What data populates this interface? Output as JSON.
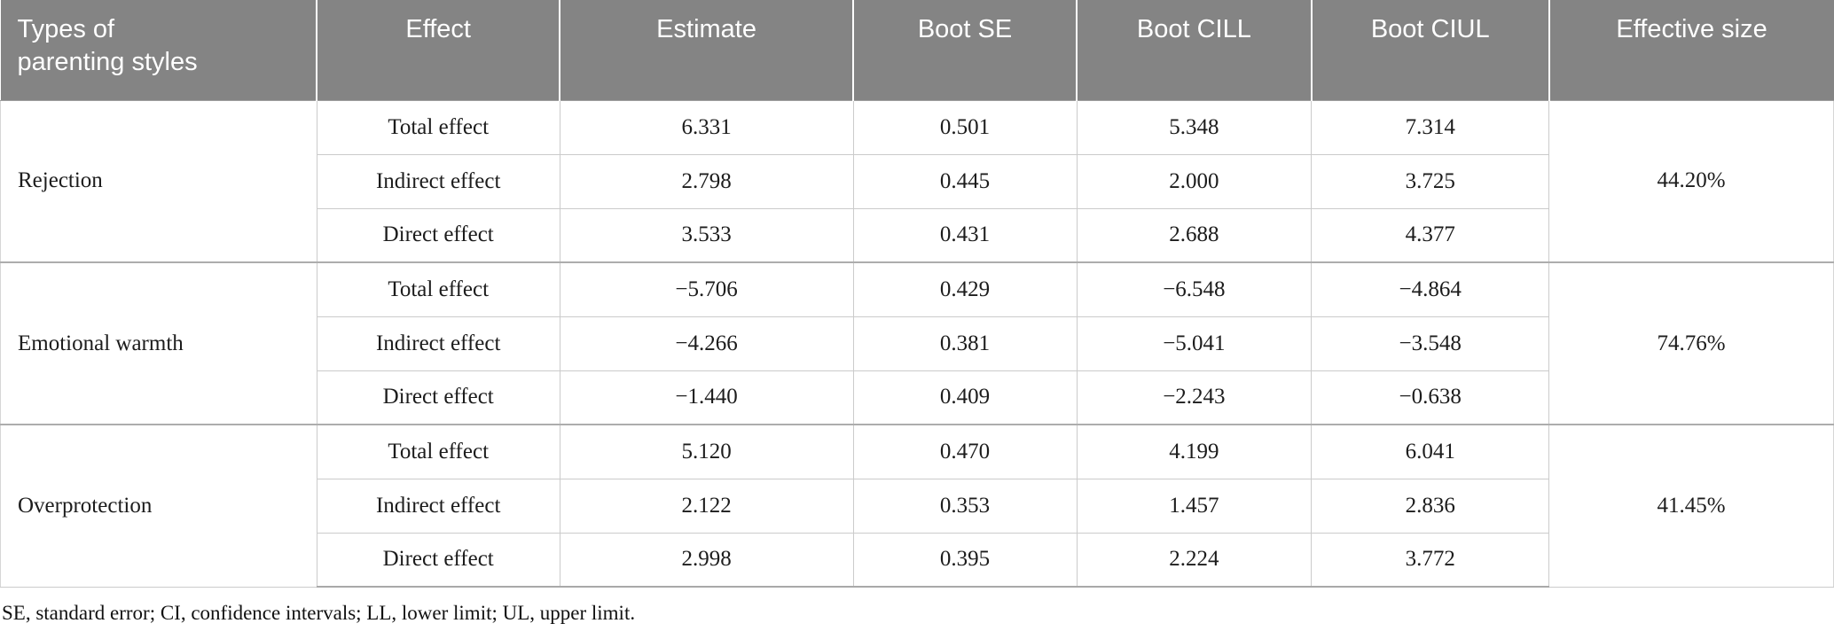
{
  "table": {
    "columns": [
      "Types of\nparenting styles",
      "Effect",
      "Estimate",
      "Boot SE",
      "Boot CILL",
      "Boot CIUL",
      "Effective size"
    ],
    "groups": [
      {
        "type": "Rejection",
        "effective_size": "44.20%",
        "rows": [
          {
            "effect": "Total effect",
            "estimate": "6.331",
            "boot_se": "0.501",
            "boot_cill": "5.348",
            "boot_ciul": "7.314"
          },
          {
            "effect": "Indirect effect",
            "estimate": "2.798",
            "boot_se": "0.445",
            "boot_cill": "2.000",
            "boot_ciul": "3.725"
          },
          {
            "effect": "Direct effect",
            "estimate": "3.533",
            "boot_se": "0.431",
            "boot_cill": "2.688",
            "boot_ciul": "4.377"
          }
        ]
      },
      {
        "type": "Emotional warmth",
        "effective_size": "74.76%",
        "rows": [
          {
            "effect": "Total effect",
            "estimate": "−5.706",
            "boot_se": "0.429",
            "boot_cill": "−6.548",
            "boot_ciul": "−4.864"
          },
          {
            "effect": "Indirect effect",
            "estimate": "−4.266",
            "boot_se": "0.381",
            "boot_cill": "−5.041",
            "boot_ciul": "−3.548"
          },
          {
            "effect": "Direct effect",
            "estimate": "−1.440",
            "boot_se": "0.409",
            "boot_cill": "−2.243",
            "boot_ciul": "−0.638"
          }
        ]
      },
      {
        "type": "Overprotection",
        "effective_size": "41.45%",
        "rows": [
          {
            "effect": "Total effect",
            "estimate": "5.120",
            "boot_se": "0.470",
            "boot_cill": "4.199",
            "boot_ciul": "6.041"
          },
          {
            "effect": "Indirect effect",
            "estimate": "2.122",
            "boot_se": "0.353",
            "boot_cill": "1.457",
            "boot_ciul": "2.836"
          },
          {
            "effect": "Direct effect",
            "estimate": "2.998",
            "boot_se": "0.395",
            "boot_cill": "2.224",
            "boot_ciul": "3.772"
          }
        ]
      }
    ],
    "footnote": "SE, standard error; CI, confidence intervals; LL, lower limit; UL, upper limit."
  },
  "colors": {
    "header_bg": "#848484",
    "header_text": "#ffffff",
    "body_text": "#1c1c1c",
    "grid_line": "#cbcbcb",
    "group_line": "#adadad"
  }
}
